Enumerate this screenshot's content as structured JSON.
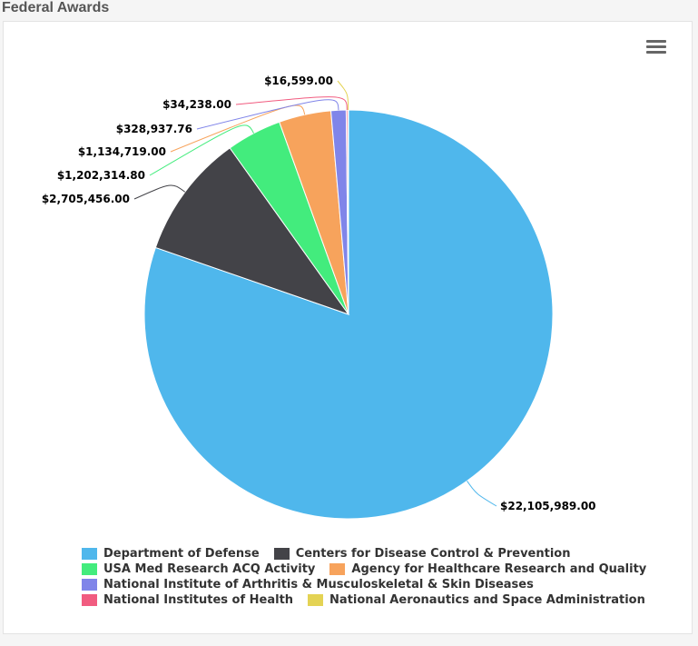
{
  "header": {
    "title": "Federal Awards"
  },
  "menu": {
    "icon": "hamburger-menu-icon"
  },
  "chart_data": {
    "type": "pie",
    "title": "Federal Awards",
    "legend_position": "bottom",
    "series": [
      {
        "name": "Department of Defense",
        "value": 22105989.0,
        "label": "$22,105,989.00",
        "color": "#4fb7ec"
      },
      {
        "name": "Centers for Disease Control & Prevention",
        "value": 2705456.0,
        "label": "$2,705,456.00",
        "color": "#434348"
      },
      {
        "name": "USA Med Research ACQ Activity",
        "value": 1202314.8,
        "label": "$1,202,314.80",
        "color": "#43ec7d"
      },
      {
        "name": "Agency for Healthcare Research and Quality",
        "value": 1134719.0,
        "label": "$1,134,719.00",
        "color": "#f7a35c"
      },
      {
        "name": "National Institute of Arthritis & Musculoskeletal & Skin Diseases",
        "value": 328937.76,
        "label": "$328,937.76",
        "color": "#8085e9"
      },
      {
        "name": "National Institutes of Health",
        "value": 34238.0,
        "label": "$34,238.00",
        "color": "#f15c80"
      },
      {
        "name": "National Aeronautics and Space Administration",
        "value": 16599.0,
        "label": "$16,599.00",
        "color": "#e4d354"
      }
    ]
  },
  "legend": {
    "rows": [
      [
        0,
        1
      ],
      [
        2,
        3
      ],
      [
        4
      ],
      [
        5,
        6
      ]
    ]
  }
}
